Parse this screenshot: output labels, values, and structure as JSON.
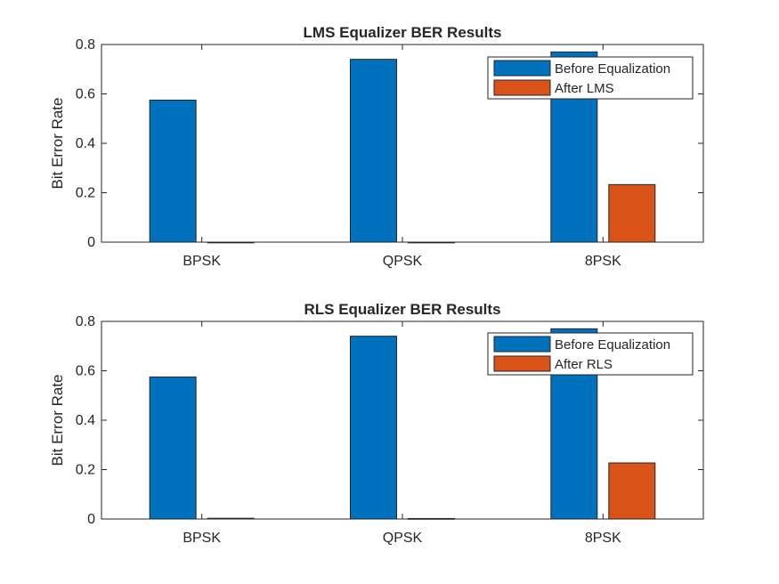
{
  "colors": {
    "before": "#0072BD",
    "after": "#D95319",
    "axis": "#262626"
  },
  "chart_data": [
    {
      "type": "bar",
      "title": "LMS Equalizer BER Results",
      "xlabel": "",
      "ylabel": "Bit Error Rate",
      "categories": [
        "BPSK",
        "QPSK",
        "8PSK"
      ],
      "ylim": [
        0,
        0.8
      ],
      "yticks": [
        0,
        0.2,
        0.4,
        0.6,
        0.8
      ],
      "ytick_labels": [
        "0",
        "0.2",
        "0.4",
        "0.6",
        "0.8"
      ],
      "grid": false,
      "legend_position": "top-right",
      "series": [
        {
          "name": "Before Equalization",
          "values": [
            0.575,
            0.74,
            0.77
          ]
        },
        {
          "name": "After LMS",
          "values": [
            0,
            0,
            0.233
          ]
        }
      ]
    },
    {
      "type": "bar",
      "title": "RLS Equalizer BER Results",
      "xlabel": "",
      "ylabel": "Bit Error Rate",
      "categories": [
        "BPSK",
        "QPSK",
        "8PSK"
      ],
      "ylim": [
        0,
        0.8
      ],
      "yticks": [
        0,
        0.2,
        0.4,
        0.6,
        0.8
      ],
      "ytick_labels": [
        "0",
        "0.2",
        "0.4",
        "0.6",
        "0.8"
      ],
      "grid": false,
      "legend_position": "top-right",
      "series": [
        {
          "name": "Before Equalization",
          "values": [
            0.575,
            0.74,
            0.77
          ]
        },
        {
          "name": "After RLS",
          "values": [
            0.003,
            0.002,
            0.227
          ]
        }
      ]
    }
  ]
}
